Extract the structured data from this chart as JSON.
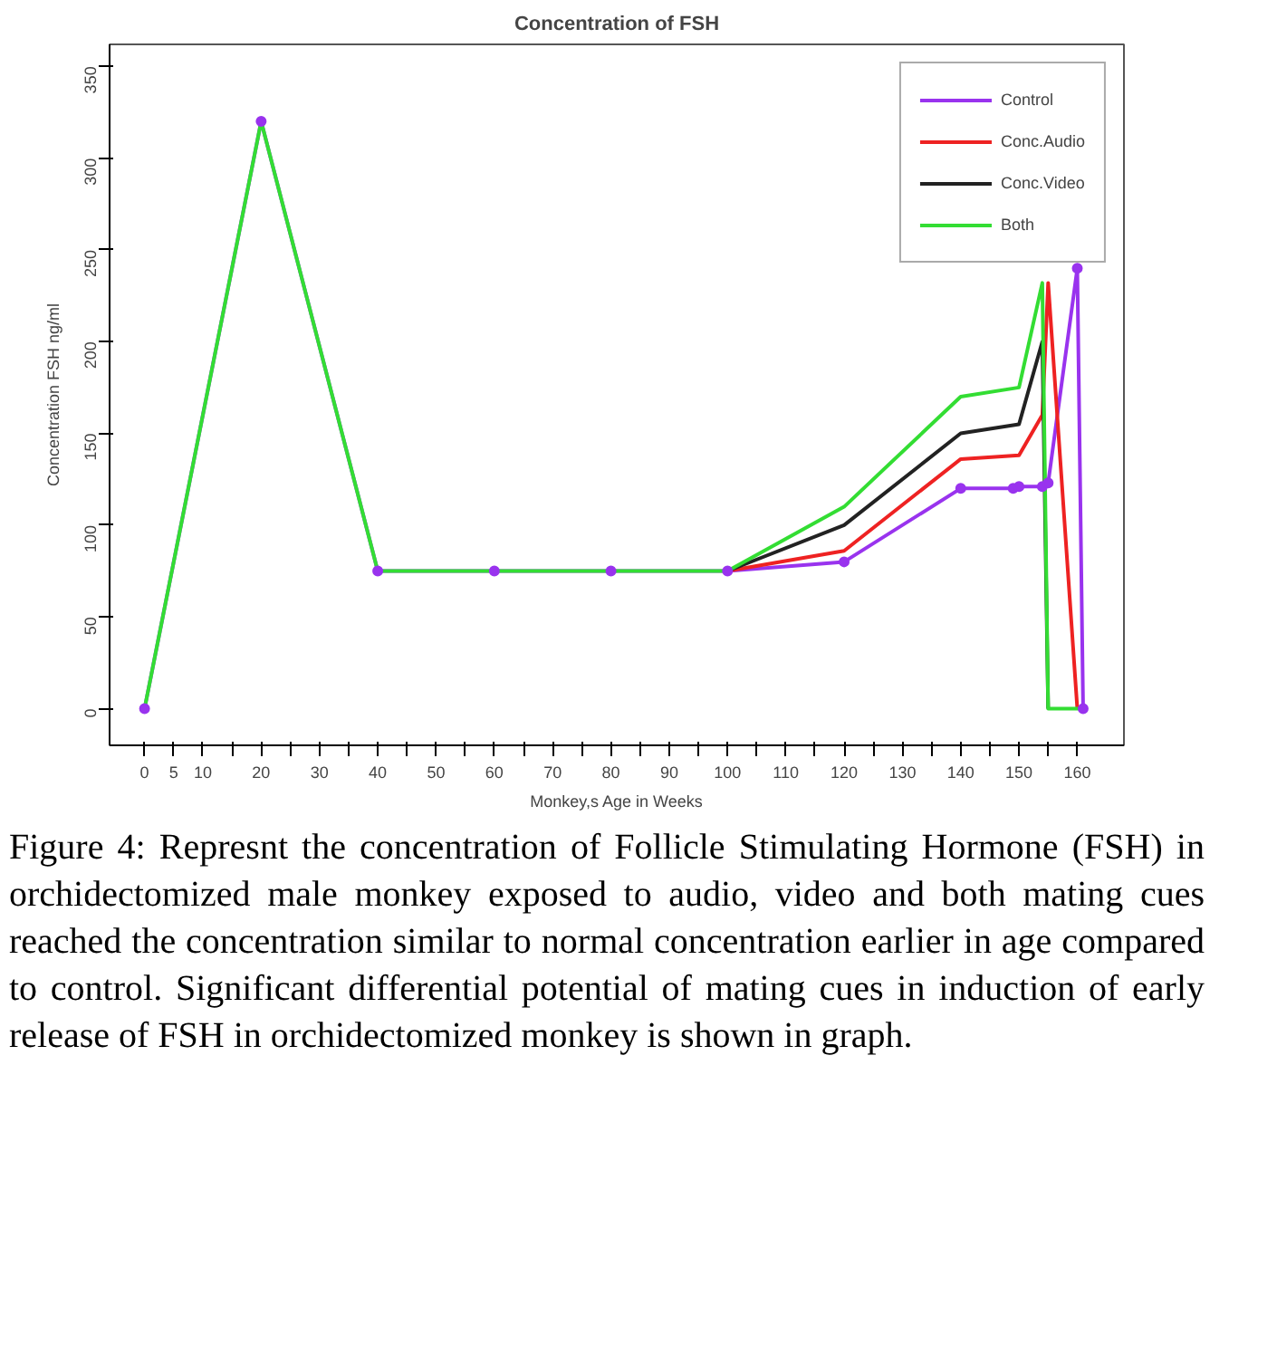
{
  "chart_data": {
    "type": "line",
    "title": "Concentration of FSH",
    "xlabel": "Monkey,s Age in Weeks",
    "ylabel": "Concentration FSH ng/ml",
    "xlim": [
      -6,
      168
    ],
    "ylim": [
      -20,
      362
    ],
    "xticks": [
      0,
      5,
      10,
      {
        "value": 15,
        "label": null
      },
      20,
      {
        "value": 25,
        "label": null
      },
      30,
      {
        "value": 35,
        "label": null
      },
      40,
      {
        "value": 45,
        "label": null
      },
      50,
      {
        "value": 55,
        "label": null
      },
      60,
      {
        "value": 65,
        "label": null
      },
      70,
      {
        "value": 75,
        "label": null
      },
      80,
      {
        "value": 85,
        "label": null
      },
      90,
      {
        "value": 95,
        "label": null
      },
      100,
      {
        "value": 105,
        "label": null
      },
      110,
      {
        "value": 115,
        "label": null
      },
      120,
      {
        "value": 125,
        "label": null
      },
      130,
      {
        "value": 135,
        "label": null
      },
      140,
      {
        "value": 145,
        "label": null
      },
      150,
      {
        "value": 155,
        "label": null
      },
      160
    ],
    "yticks": [
      0,
      50,
      100,
      150,
      200,
      250,
      300,
      350
    ],
    "grid": false,
    "legend": "top right",
    "line_style": "solid",
    "series": [
      {
        "name": "Control",
        "color": "#9933ee",
        "marker": "circle",
        "x": [
          0,
          20,
          40,
          60,
          80,
          100,
          120,
          140,
          149,
          150,
          154,
          155,
          160,
          161
        ],
        "values": [
          0,
          320,
          75,
          75,
          75,
          75,
          80,
          120,
          120,
          121,
          121,
          123,
          240,
          0
        ]
      },
      {
        "name": "Conc.Audio",
        "color": "#ee2222",
        "x": [
          100,
          120,
          140,
          150,
          154,
          155,
          160
        ],
        "values": [
          75,
          86,
          136,
          138,
          160,
          232,
          0
        ]
      },
      {
        "name": "Conc.Video",
        "color": "#222222",
        "x": [
          100,
          120,
          140,
          150,
          154,
          155
        ],
        "values": [
          75,
          100,
          150,
          155,
          200,
          0
        ]
      },
      {
        "name": "Both",
        "color": "#33dd33",
        "x": [
          0,
          20,
          40,
          60,
          80,
          100,
          120,
          140,
          150,
          154,
          155,
          161
        ],
        "values": [
          0,
          320,
          75,
          75,
          75,
          75,
          110,
          170,
          175,
          232,
          0,
          0
        ]
      }
    ],
    "annotations": [
      "Figure 4: Represnt the concentration of Follicle Stimulating Hormone (FSH) in orchidectomized male monkey exposed to audio, video and both mating cues reached the concentration similar to normal concentration earlier in age compared to control. Significant differential potential of mating cues in induction of early release of FSH in orchidectomized monkey is shown in graph."
    ]
  }
}
